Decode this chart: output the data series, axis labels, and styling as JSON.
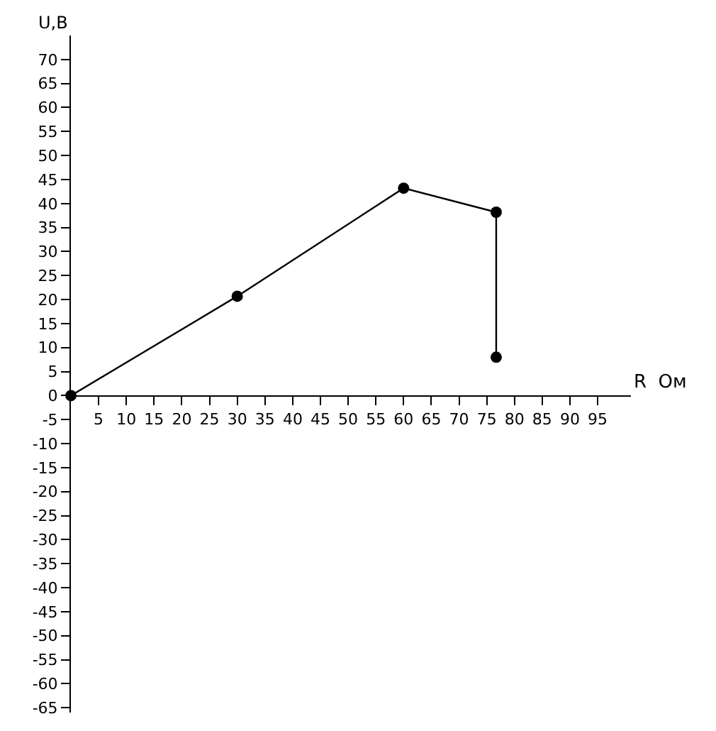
{
  "chart_data": {
    "type": "line",
    "xlabel": "R  Ом",
    "ylabel": "U,В",
    "x": [
      0,
      30,
      60,
      76.7,
      76.7
    ],
    "series": [
      {
        "color": "#000000",
        "values": [
          0,
          20.7,
          43.2,
          38.2,
          8
        ]
      }
    ],
    "xlim": [
      0,
      101
    ],
    "ylim": [
      -66,
      75
    ],
    "xticks": [
      5,
      10,
      15,
      20,
      25,
      30,
      35,
      40,
      45,
      50,
      55,
      60,
      65,
      70,
      75,
      80,
      85,
      90,
      95
    ],
    "yticks": [
      -65,
      -60,
      -55,
      -50,
      -45,
      -40,
      -35,
      -30,
      -25,
      -20,
      -15,
      -10,
      -5,
      0,
      5,
      10,
      15,
      20,
      25,
      30,
      35,
      40,
      45,
      50,
      55,
      60,
      65,
      70
    ],
    "marker": "circle",
    "line_style": "solid"
  }
}
